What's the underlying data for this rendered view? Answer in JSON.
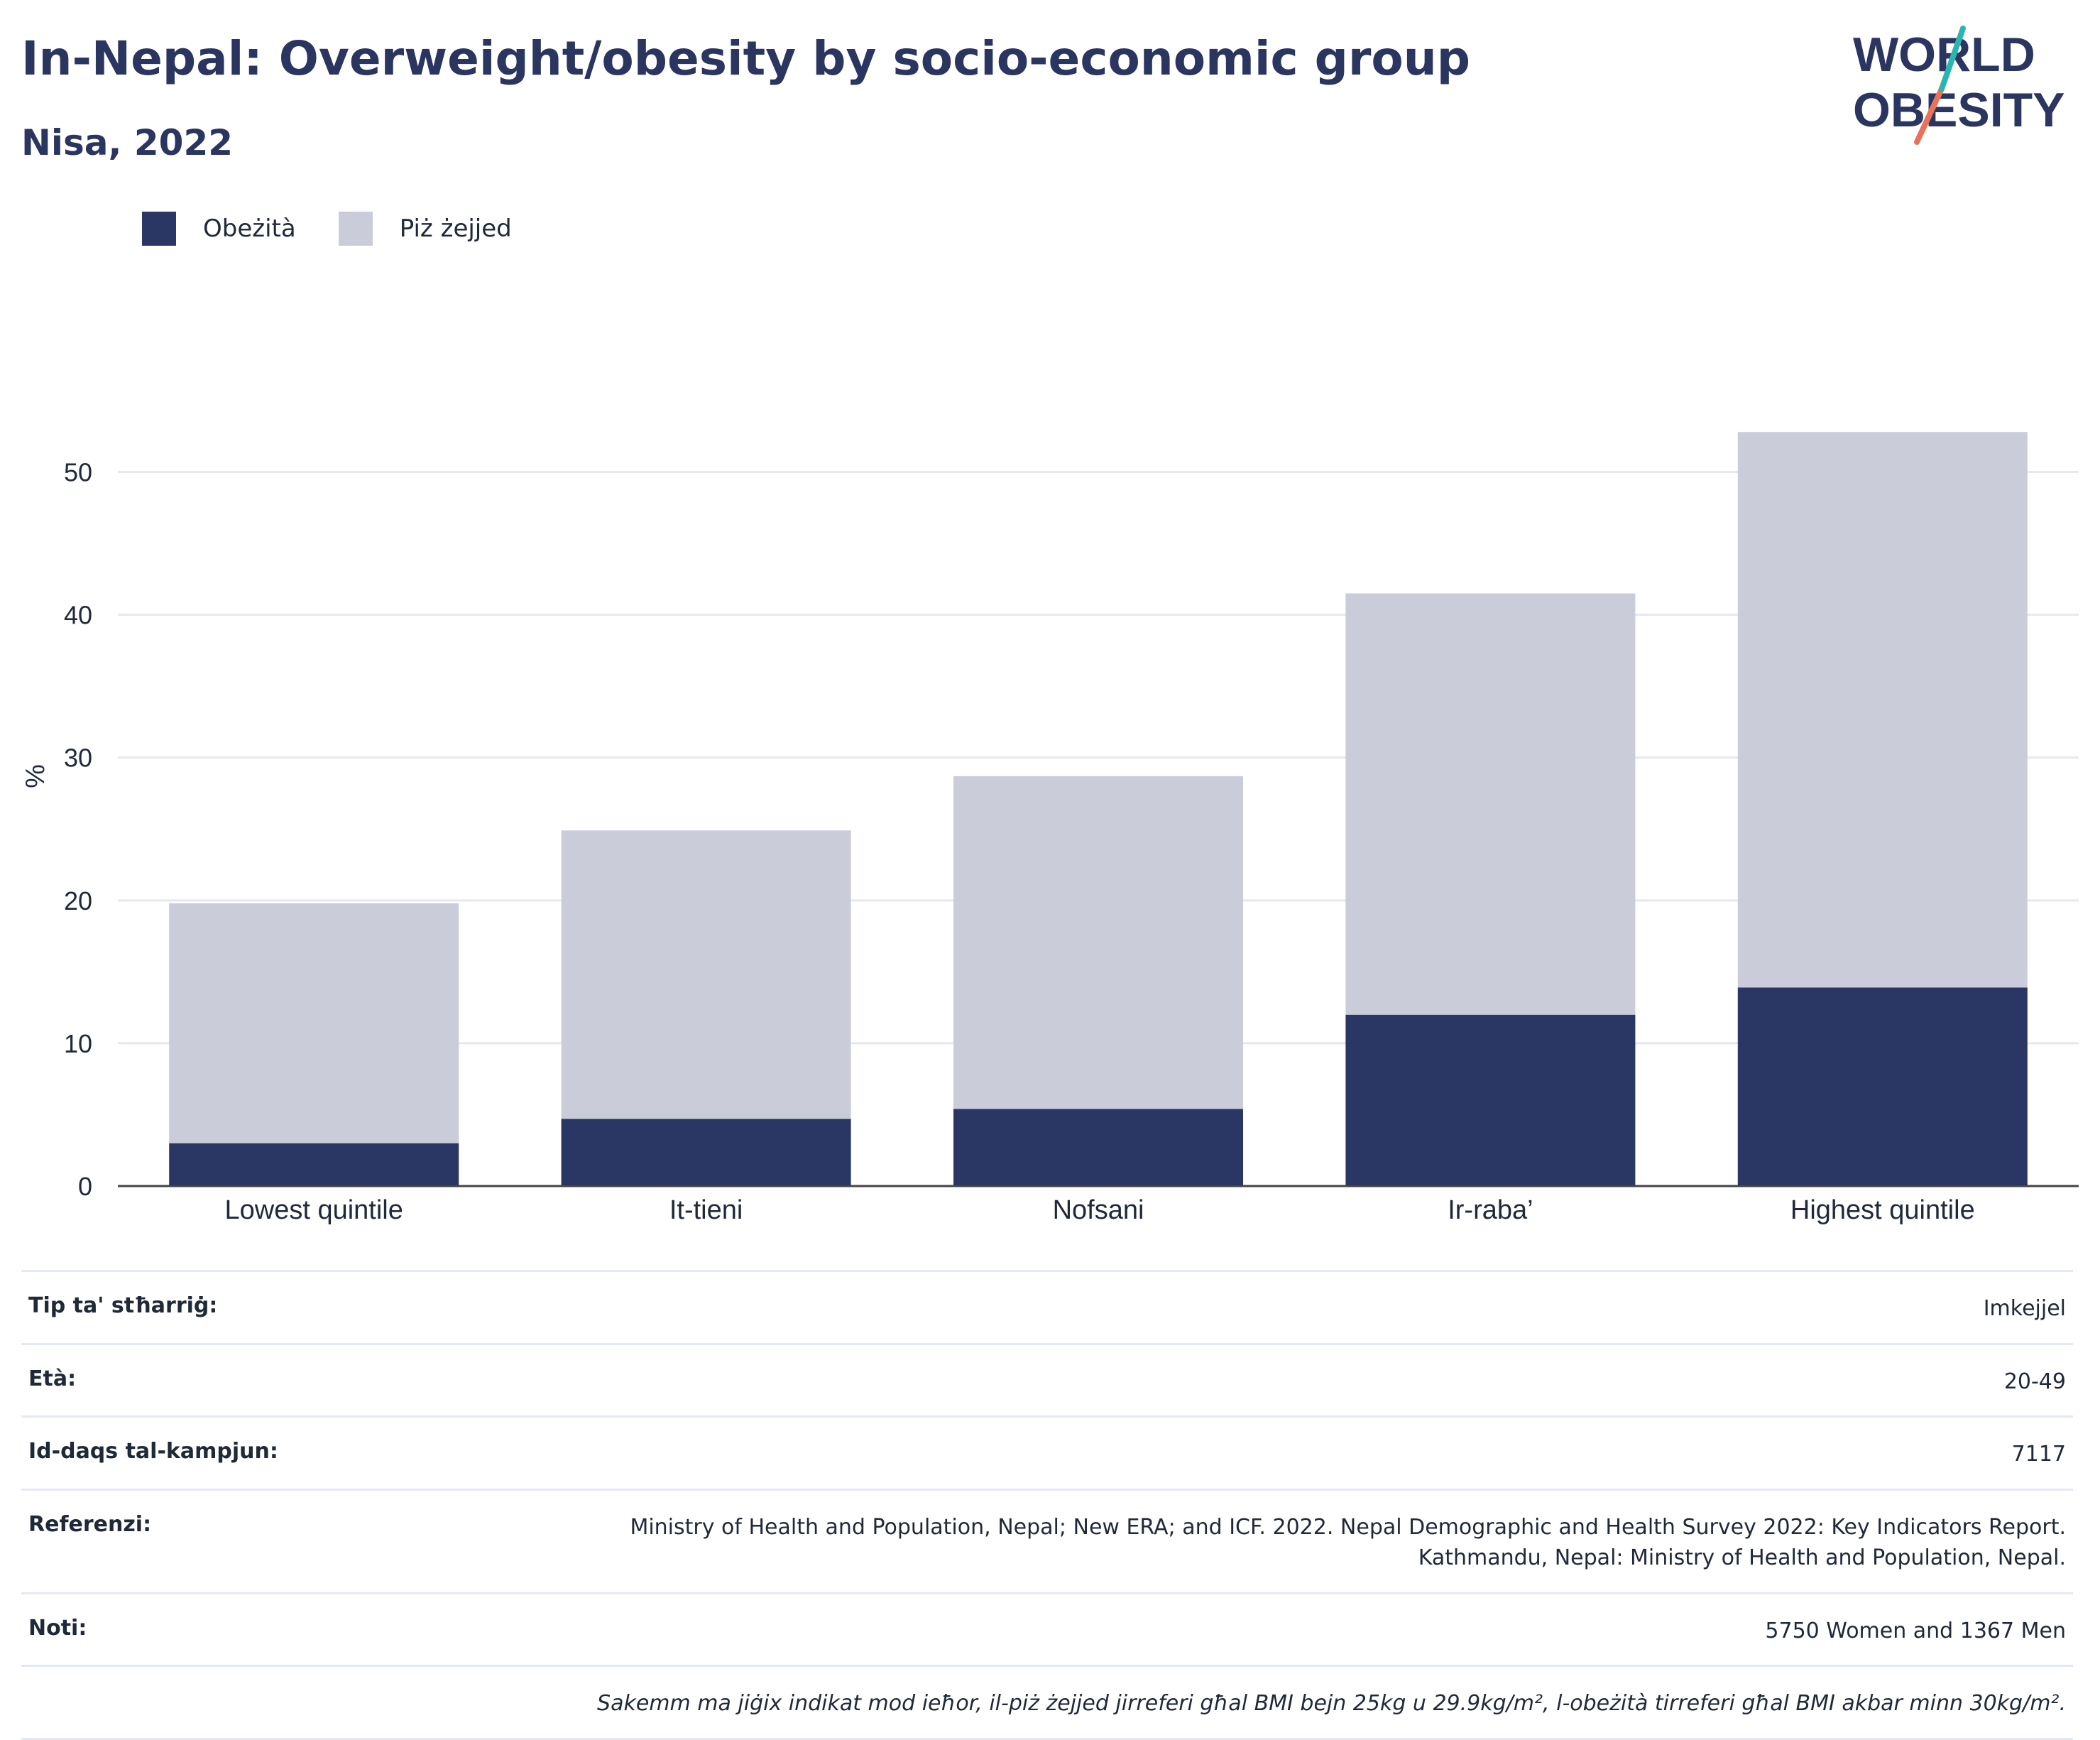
{
  "header": {
    "title": "In-Nepal: Overweight/obesity by socio-economic group",
    "subtitle": "Nisa, 2022"
  },
  "logo": {
    "line1": "WORLD",
    "line2": "OBESITY",
    "accent_teal": "#2bb5b0",
    "accent_coral": "#e8735a"
  },
  "legend": [
    {
      "label": "Obeżità",
      "color": "#2a3663"
    },
    {
      "label": "Piż żejjed",
      "color": "#cacdd9"
    }
  ],
  "chart_data": {
    "type": "bar",
    "stacked": true,
    "categories": [
      "Lowest quintile",
      "It-tieni",
      "Nofsani",
      "Ir-raba’",
      "Highest quintile"
    ],
    "series": [
      {
        "name": "Obeżità",
        "values": [
          3.0,
          4.7,
          5.4,
          12.0,
          13.9
        ],
        "color": "#2a3663"
      },
      {
        "name": "Piż żejjed",
        "values": [
          16.8,
          20.2,
          23.3,
          29.5,
          38.9
        ],
        "color": "#cacdd9"
      }
    ],
    "ylabel": "%",
    "xlabel": "",
    "ylim": [
      0,
      55
    ],
    "yticks": [
      0,
      10,
      20,
      30,
      40,
      50
    ],
    "grid": true,
    "legend_position": "top-left"
  },
  "meta": [
    {
      "key": "Tip ta' stħarriġ:",
      "value": "Imkejjel"
    },
    {
      "key": "Età:",
      "value": "20-49"
    },
    {
      "key": "Id-daqs tal-kampjun:",
      "value": "7117"
    },
    {
      "key": "Referenzi:",
      "value": "Ministry of Health and Population, Nepal; New ERA; and ICF. 2022. Nepal Demographic and Health Survey 2022: Key Indicators Report.\nKathmandu, Nepal: Ministry of Health and Population, Nepal."
    },
    {
      "key": "Noti:",
      "value": "5750 Women and 1367 Men"
    },
    {
      "key": "",
      "value": "Sakemm ma jiġix indikat mod ieħor, il-piż żejjed jirreferi għal BMI bejn 25kg u 29.9kg/m², l-obeżità tirreferi għal BMI akbar minn 30kg/m²."
    }
  ]
}
